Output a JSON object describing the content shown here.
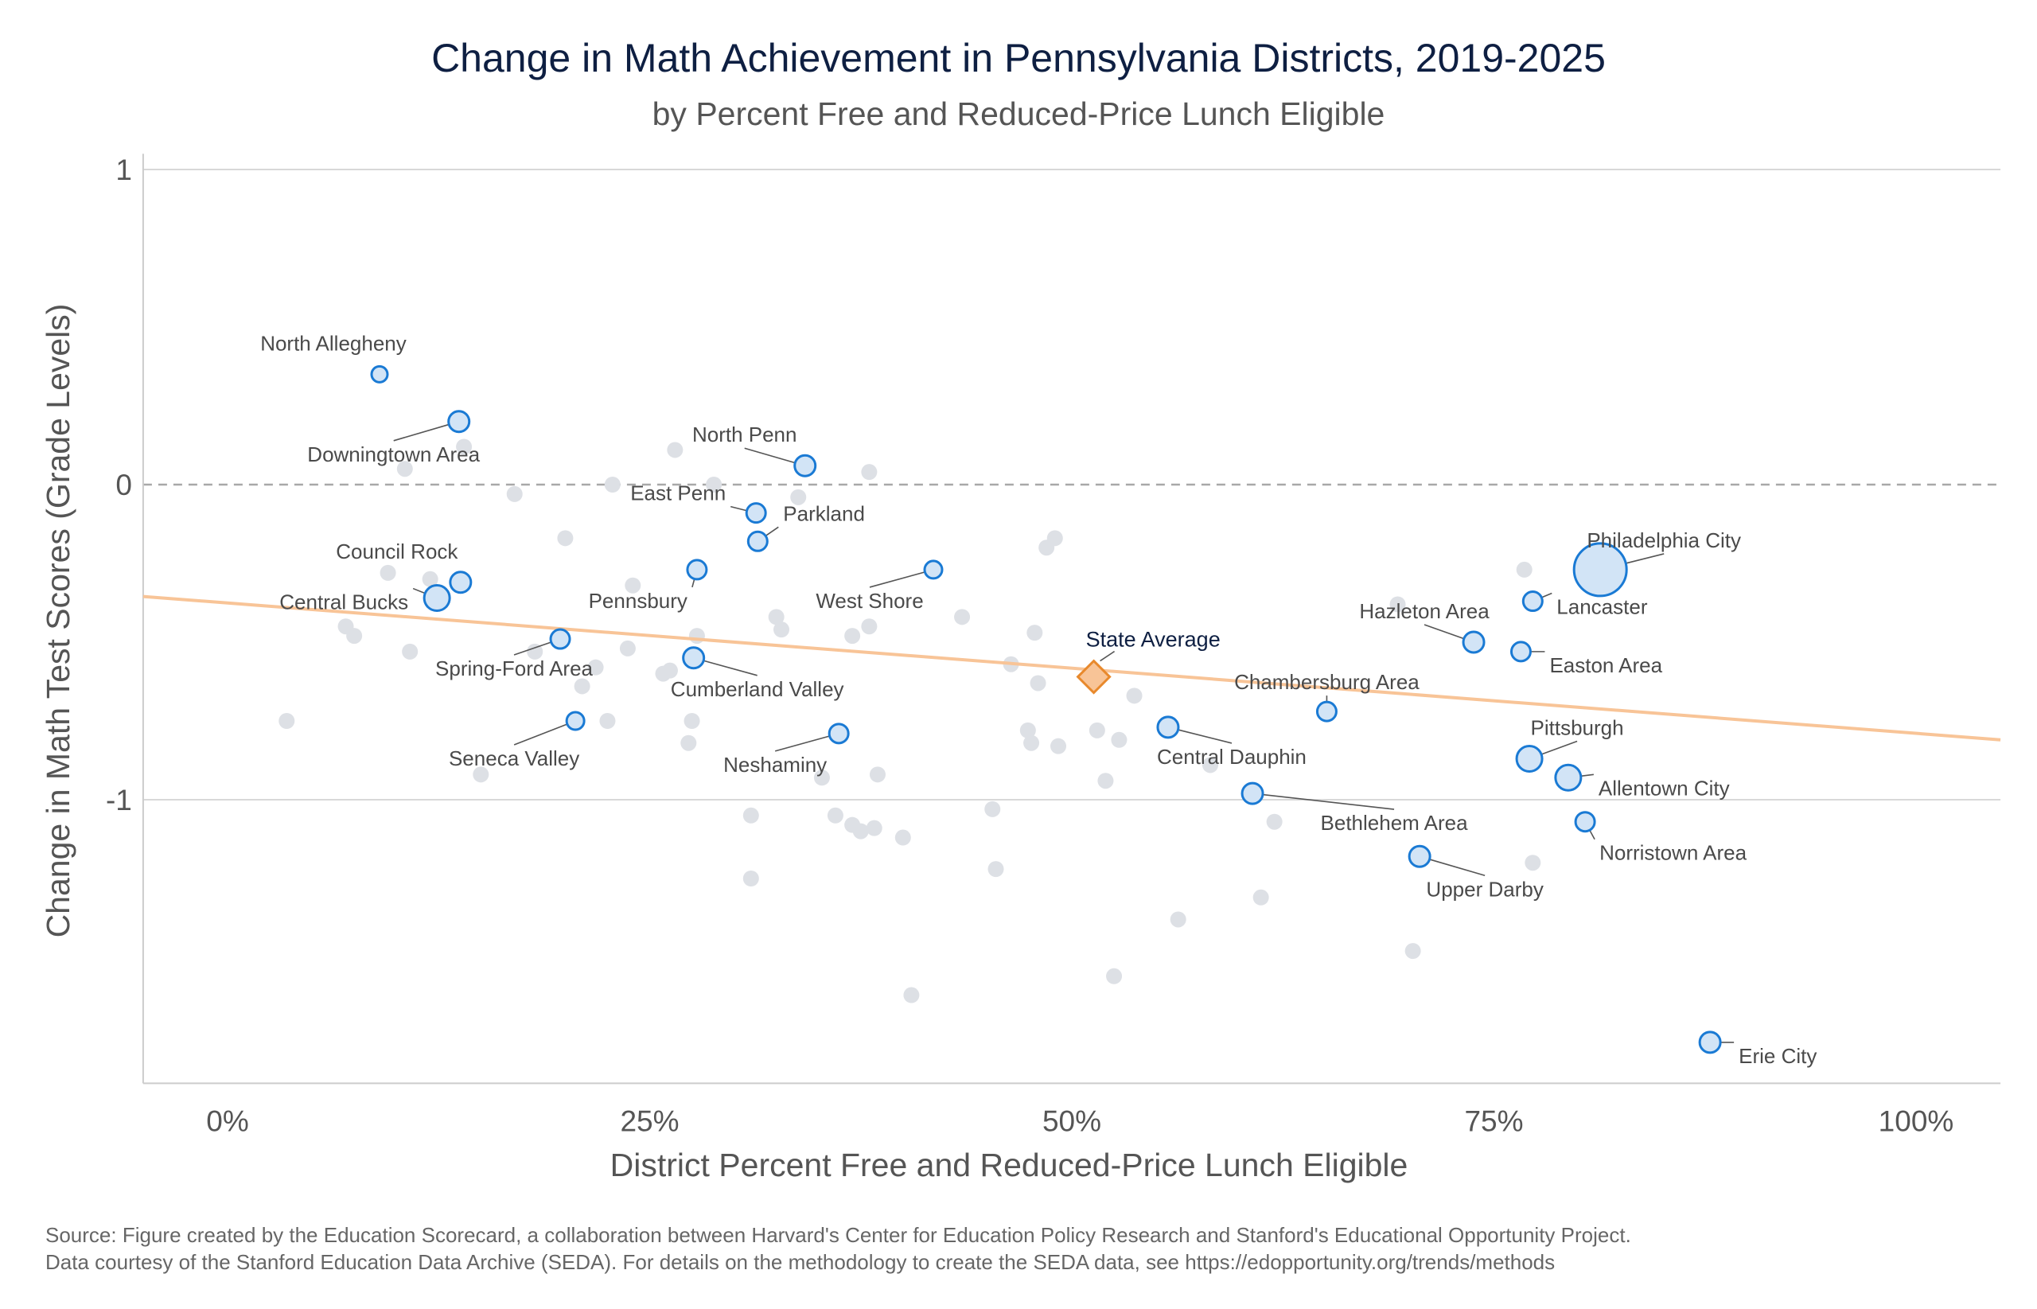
{
  "chart_data": {
    "type": "scatter",
    "title": "Change in Math Achievement in Pennsylvania Districts, 2019-2025",
    "subtitle": "by Percent Free and Reduced-Price Lunch Eligible",
    "xlabel": "District Percent Free and Reduced-Price Lunch Eligible",
    "ylabel": "Change in Math Test Scores (Grade Levels)",
    "xlim": [
      -0.05,
      1.05
    ],
    "ylim": [
      -1.9,
      1.05
    ],
    "xticks": [
      0,
      0.25,
      0.5,
      0.75,
      1.0
    ],
    "xtick_labels": [
      "0%",
      "25%",
      "50%",
      "75%",
      "100%"
    ],
    "yticks": [
      1,
      0,
      -1
    ],
    "ytick_labels": [
      "1",
      "0",
      "-1"
    ],
    "reference_line_y": 0,
    "trend_line": {
      "x": [
        -0.05,
        1.05
      ],
      "y": [
        -0.355,
        -0.81
      ]
    },
    "colors": {
      "background_point": "#dde0e5",
      "highlight_fill": "#d2e4f6",
      "highlight_stroke": "#1a7ad4",
      "trend": "#f8c497",
      "state_fill": "#f8c497",
      "state_stroke": "#e8892c",
      "title": "#0e1f42"
    },
    "background_points": [
      [
        0.035,
        -0.75
      ],
      [
        0.07,
        -0.45
      ],
      [
        0.075,
        -0.48
      ],
      [
        0.095,
        -0.28
      ],
      [
        0.105,
        0.05
      ],
      [
        0.108,
        -0.53
      ],
      [
        0.12,
        -0.3
      ],
      [
        0.14,
        0.12
      ],
      [
        0.15,
        -0.92
      ],
      [
        0.17,
        -0.03
      ],
      [
        0.182,
        -0.53
      ],
      [
        0.2,
        -0.17
      ],
      [
        0.21,
        -0.64
      ],
      [
        0.218,
        -0.58
      ],
      [
        0.225,
        -0.75
      ],
      [
        0.228,
        0.0
      ],
      [
        0.237,
        -0.52
      ],
      [
        0.24,
        -0.32
      ],
      [
        0.258,
        -0.6
      ],
      [
        0.262,
        -0.59
      ],
      [
        0.265,
        0.11
      ],
      [
        0.275,
        -0.75
      ],
      [
        0.273,
        -0.82
      ],
      [
        0.278,
        -0.48
      ],
      [
        0.288,
        0.0
      ],
      [
        0.31,
        -1.05
      ],
      [
        0.31,
        -1.25
      ],
      [
        0.325,
        -0.42
      ],
      [
        0.328,
        -0.46
      ],
      [
        0.338,
        -0.04
      ],
      [
        0.352,
        -0.93
      ],
      [
        0.36,
        -1.05
      ],
      [
        0.37,
        -1.08
      ],
      [
        0.375,
        -1.1
      ],
      [
        0.383,
        -1.09
      ],
      [
        0.37,
        -0.48
      ],
      [
        0.38,
        -0.45
      ],
      [
        0.38,
        0.04
      ],
      [
        0.385,
        -0.92
      ],
      [
        0.4,
        -1.12
      ],
      [
        0.405,
        -1.62
      ],
      [
        0.435,
        -0.42
      ],
      [
        0.453,
        -1.03
      ],
      [
        0.455,
        -1.22
      ],
      [
        0.464,
        -0.57
      ],
      [
        0.474,
        -0.78
      ],
      [
        0.476,
        -0.82
      ],
      [
        0.478,
        -0.47
      ],
      [
        0.48,
        -0.63
      ],
      [
        0.485,
        -0.2
      ],
      [
        0.49,
        -0.17
      ],
      [
        0.492,
        -0.83
      ],
      [
        0.515,
        -0.78
      ],
      [
        0.52,
        -0.94
      ],
      [
        0.525,
        -1.56
      ],
      [
        0.528,
        -0.81
      ],
      [
        0.537,
        -0.67
      ],
      [
        0.563,
        -1.38
      ],
      [
        0.582,
        -0.89
      ],
      [
        0.62,
        -1.07
      ],
      [
        0.612,
        -1.31
      ],
      [
        0.693,
        -0.38
      ],
      [
        0.702,
        -1.48
      ],
      [
        0.768,
        -0.27
      ],
      [
        0.773,
        -1.2
      ]
    ],
    "districts": [
      {
        "name": "North Allegheny",
        "x": 0.09,
        "y": 0.35,
        "r": 10
      },
      {
        "name": "Downingtown Area",
        "x": 0.137,
        "y": 0.2,
        "r": 13
      },
      {
        "name": "Council Rock",
        "x": 0.138,
        "y": -0.31,
        "r": 13
      },
      {
        "name": "Central Bucks",
        "x": 0.124,
        "y": -0.36,
        "r": 16
      },
      {
        "name": "Spring-Ford Area",
        "x": 0.197,
        "y": -0.49,
        "r": 12
      },
      {
        "name": "Seneca Valley",
        "x": 0.206,
        "y": -0.75,
        "r": 11
      },
      {
        "name": "North Penn",
        "x": 0.342,
        "y": 0.06,
        "r": 13
      },
      {
        "name": "East Penn",
        "x": 0.313,
        "y": -0.09,
        "r": 12
      },
      {
        "name": "Parkland",
        "x": 0.314,
        "y": -0.18,
        "r": 12
      },
      {
        "name": "Pennsbury",
        "x": 0.278,
        "y": -0.27,
        "r": 12
      },
      {
        "name": "Cumberland Valley",
        "x": 0.276,
        "y": -0.55,
        "r": 13
      },
      {
        "name": "Neshaminy",
        "x": 0.362,
        "y": -0.79,
        "r": 12
      },
      {
        "name": "West Shore",
        "x": 0.418,
        "y": -0.27,
        "r": 11
      },
      {
        "name": "Central Dauphin",
        "x": 0.557,
        "y": -0.77,
        "r": 13
      },
      {
        "name": "Bethlehem Area",
        "x": 0.607,
        "y": -0.98,
        "r": 13
      },
      {
        "name": "Chambersburg Area",
        "x": 0.651,
        "y": -0.72,
        "r": 12
      },
      {
        "name": "Upper Darby",
        "x": 0.706,
        "y": -1.18,
        "r": 13
      },
      {
        "name": "Hazleton Area",
        "x": 0.738,
        "y": -0.5,
        "r": 13
      },
      {
        "name": "Easton Area",
        "x": 0.766,
        "y": -0.53,
        "r": 12
      },
      {
        "name": "Lancaster",
        "x": 0.773,
        "y": -0.37,
        "r": 12
      },
      {
        "name": "Philadelphia City",
        "x": 0.813,
        "y": -0.27,
        "r": 33
      },
      {
        "name": "Pittsburgh",
        "x": 0.771,
        "y": -0.87,
        "r": 16
      },
      {
        "name": "Allentown City",
        "x": 0.794,
        "y": -0.93,
        "r": 16
      },
      {
        "name": "Norristown Area",
        "x": 0.804,
        "y": -1.07,
        "r": 12
      },
      {
        "name": "Erie City",
        "x": 0.878,
        "y": -1.77,
        "r": 13
      }
    ],
    "state_average": {
      "name": "State Average",
      "x": 0.513,
      "y": -0.61
    }
  },
  "source": {
    "line1": "Source: Figure created by the Education Scorecard, a collaboration between Harvard's Center for Education Policy Research and Stanford's Educational Opportunity Project.",
    "line2": "Data courtesy of the Stanford Education Data Archive (SEDA). For details on the methodology to create the SEDA data, see https://edopportunity.org/trends/methods"
  }
}
